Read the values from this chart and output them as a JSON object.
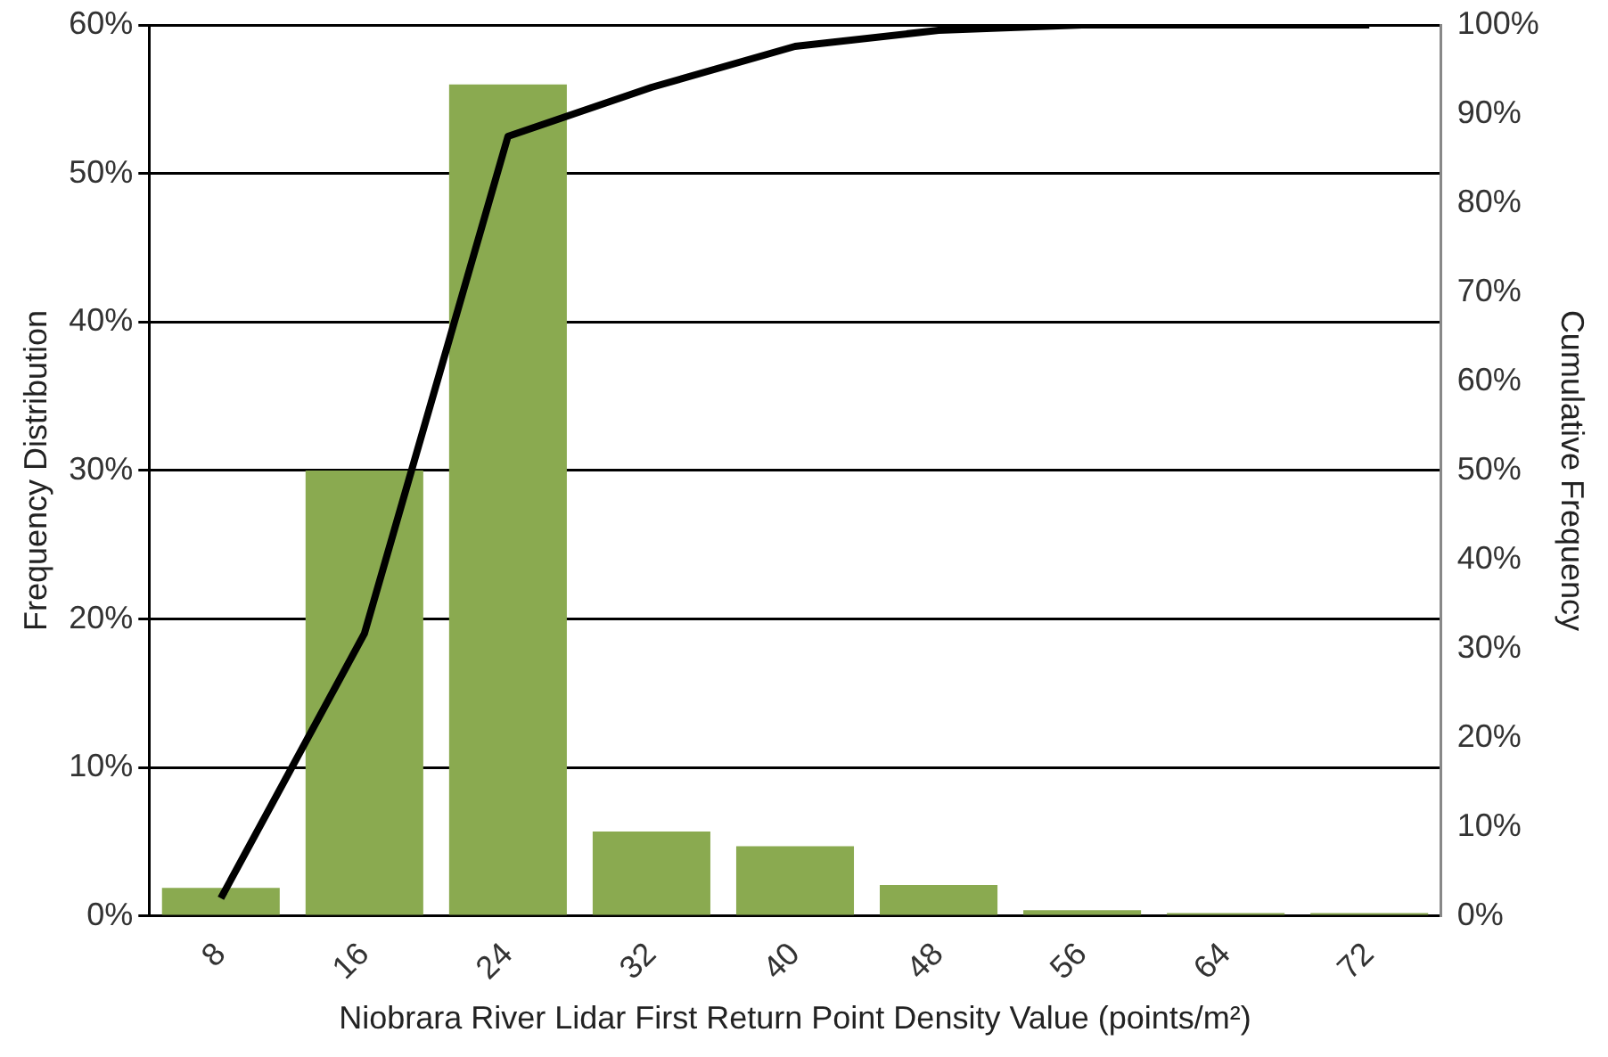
{
  "chart_data": {
    "type": "bar",
    "xlabel": "Niobrara River Lidar First Return Point Density Value (points/m²)",
    "ylabel": "Frequency Distribution",
    "y2label": "Cumulative Frequency",
    "categories": [
      "8",
      "16",
      "24",
      "32",
      "40",
      "48",
      "56",
      "64",
      "72"
    ],
    "series": [
      {
        "color": "#8aaa50",
        "values": [
          1.9,
          30,
          56,
          5.7,
          4.7,
          2.1,
          0.4,
          0.2,
          0.2
        ]
      },
      {
        "type": "line",
        "axis": "y2",
        "color": "#000000",
        "values": [
          2,
          31.7,
          87.5,
          93,
          97.6,
          99.4,
          100,
          100,
          100
        ]
      }
    ],
    "ylim": [
      0,
      60
    ],
    "yticks": [
      {
        "value": 0,
        "label": "0%"
      },
      {
        "value": 10,
        "label": "10%"
      },
      {
        "value": 20,
        "label": "20%"
      },
      {
        "value": 30,
        "label": "30%"
      },
      {
        "value": 40,
        "label": "40%"
      },
      {
        "value": 50,
        "label": "50%"
      },
      {
        "value": 60,
        "label": "60%"
      }
    ],
    "y2lim": [
      0,
      100
    ],
    "y2ticks": [
      {
        "value": 0,
        "label": "0%"
      },
      {
        "value": 10,
        "label": "10%"
      },
      {
        "value": 20,
        "label": "20%"
      },
      {
        "value": 30,
        "label": "30%"
      },
      {
        "value": 40,
        "label": "40%"
      },
      {
        "value": 50,
        "label": "50%"
      },
      {
        "value": 60,
        "label": "60%"
      },
      {
        "value": 70,
        "label": "70%"
      },
      {
        "value": 80,
        "label": "80%"
      },
      {
        "value": 90,
        "label": "90%"
      },
      {
        "value": 100,
        "label": "100%"
      }
    ],
    "grid": "y",
    "legend": false,
    "marker": "none",
    "line_style": "solid"
  }
}
